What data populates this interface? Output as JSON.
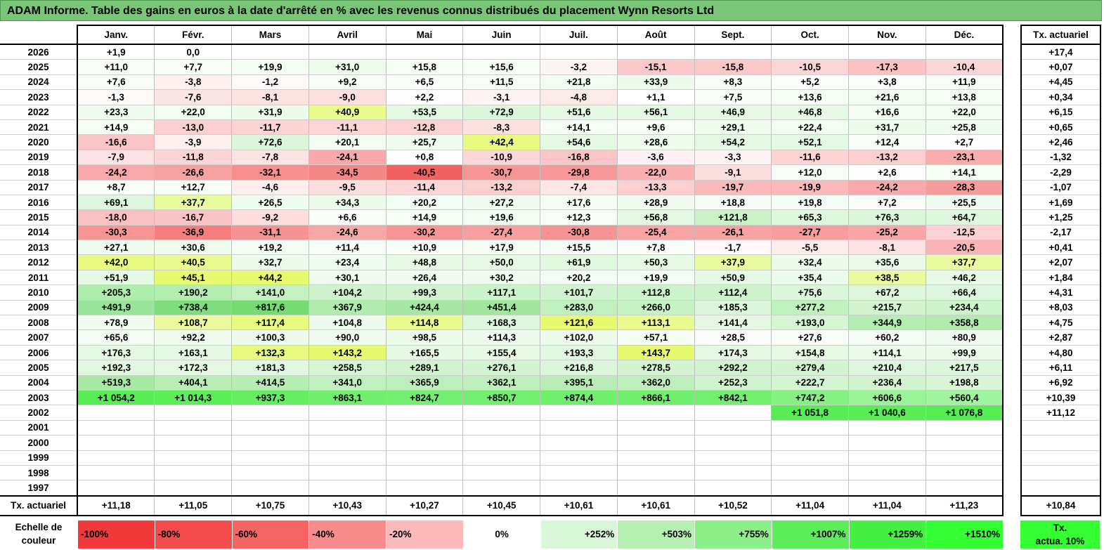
{
  "title": "ADAM Informe. Table des gains en euros à la date d'arrêté en % avec les revenus connus distribués du placement Wynn Resorts Ltd",
  "months": [
    "Janv.",
    "Févr.",
    "Mars",
    "Avril",
    "Mai",
    "Juin",
    "Juil.",
    "Août",
    "Sept.",
    "Oct.",
    "Nov.",
    "Déc."
  ],
  "side_header": "Tx. actuariel",
  "footer_label": "Tx. actuariel",
  "rows": [
    {
      "year": "2026",
      "v": [
        "+1,9",
        "0,0",
        "",
        "",
        "",
        "",
        "",
        "",
        "",
        "",
        "",
        ""
      ],
      "c": [
        "#ffffff",
        "#ffffff",
        "#ffffff",
        "#ffffff",
        "#ffffff",
        "#ffffff",
        "#ffffff",
        "#ffffff",
        "#ffffff",
        "#ffffff",
        "#ffffff",
        "#ffffff"
      ],
      "rate": "+17,4"
    },
    {
      "year": "2025",
      "v": [
        "+11,0",
        "+7,7",
        "+19,9",
        "+31,0",
        "+15,8",
        "+15,6",
        "-3,2",
        "-15,1",
        "-15,8",
        "-10,5",
        "-17,3",
        "-10,4"
      ],
      "c": [
        "#f7fdf6",
        "#f9fdf8",
        "#f4fcf3",
        "#eefbed",
        "#f6fdf5",
        "#f6fdf5",
        "#fff4f4",
        "#fbc9c9",
        "#fbc8c8",
        "#fcd6d6",
        "#fbc2c2",
        "#fcd6d6"
      ],
      "rate": "+0,07"
    },
    {
      "year": "2024",
      "v": [
        "+7,6",
        "-3,8",
        "-1,2",
        "+9,2",
        "+6,5",
        "+11,5",
        "+21,8",
        "+33,9",
        "+8,3",
        "+5,2",
        "+3,8",
        "+11,9"
      ],
      "c": [
        "#f9fdf8",
        "#fff0f0",
        "#fff9f9",
        "#f8fdf7",
        "#fafdf9",
        "#f7fdf6",
        "#f2fcf1",
        "#ecfbeb",
        "#f9fdf8",
        "#fbfefb",
        "#fcfefc",
        "#f7fdf6"
      ],
      "rate": "+4,45"
    },
    {
      "year": "2023",
      "v": [
        "-1,3",
        "-7,6",
        "-8,1",
        "-9,0",
        "+2,2",
        "-3,1",
        "-4,8",
        "+1,1",
        "+7,5",
        "+13,6",
        "+21,6",
        "+13,8"
      ],
      "c": [
        "#fff9f9",
        "#fde4e4",
        "#fde2e2",
        "#fddfdf",
        "#fdfefd",
        "#fff3f3",
        "#fee9e9",
        "#fefffe",
        "#f9fdf8",
        "#f6fdf5",
        "#f2fcf1",
        "#f6fdf5"
      ],
      "rate": "+0,34"
    },
    {
      "year": "2022",
      "v": [
        "+23,3",
        "+22,0",
        "+31,9",
        "+40,9",
        "+53,5",
        "+72,9",
        "+51,6",
        "+56,1",
        "+46,9",
        "+46,8",
        "+16,6",
        "+22,0"
      ],
      "c": [
        "#f1fcf0",
        "#f2fcf1",
        "#edfbec",
        "#e9faе8",
        "#e3f9e2",
        "#dbf7da",
        "#e4f9e3",
        "#e2f8e1",
        "#e6f9e5",
        "#e6f9e5",
        "#f5fcf4",
        "#f2fcf1"
      ],
      "rate": "+6,15"
    },
    {
      "year": "2021",
      "v": [
        "+14,9",
        "-13,0",
        "-11,7",
        "-11,1",
        "-12,8",
        "-8,3",
        "+14,1",
        "+9,6",
        "+29,1",
        "+22,4",
        "+31,7",
        "+25,8"
      ],
      "c": [
        "#f6fdf5",
        "#fcd0d0",
        "#fcd4d4",
        "#fcd5d5",
        "#fcd1d1",
        "#fde1e1",
        "#f6fdf5",
        "#f8fdf7",
        "#eefbed",
        "#f2fcf1",
        "#edfbec",
        "#f0fcef"
      ],
      "rate": "+0,65"
    },
    {
      "year": "2020",
      "v": [
        "-16,6",
        "-3,9",
        "+72,6",
        "+20,1",
        "+25,7",
        "+42,4",
        "+54,6",
        "+28,6",
        "+54,2",
        "+52,1",
        "+12,4",
        "+2,7"
      ],
      "c": [
        "#fbc5c5",
        "#fff0f0",
        "#dbf7da",
        "#f3fcf2",
        "#f0fcef",
        "#e8faе7",
        "#e3f9e2",
        "#eefbed",
        "#e3f9e2",
        "#e4f9e3",
        "#f7fdf6",
        "#fdfefd"
      ],
      "rate": "+2,46"
    },
    {
      "year": "2019",
      "v": [
        "-7,9",
        "-11,8",
        "-7,8",
        "-24,1",
        "+0,8",
        "-10,9",
        "-16,8",
        "-3,6",
        "-3,3",
        "-11,6",
        "-13,2",
        "-23,1"
      ],
      "c": [
        "#fde2e2",
        "#fcd4d4",
        "#fde2e2",
        "#f9a9a9",
        "#ffffff",
        "#fcd7d7",
        "#fbc5c5",
        "#fff1f1",
        "#fff2f2",
        "#fcd4d4",
        "#fccfcf",
        "#f9adad"
      ],
      "rate": "-1,32"
    },
    {
      "year": "2018",
      "v": [
        "-24,2",
        "-26,6",
        "-32,1",
        "-34,5",
        "-40,5",
        "-30,7",
        "-29,8",
        "-22,0",
        "-9,1",
        "+12,0",
        "+2,6",
        "+14,1"
      ],
      "c": [
        "#f9a9a9",
        "#f8a1a1",
        "#f78f8f",
        "#f68787",
        "#f46161",
        "#f79494",
        "#f79797",
        "#fab0b0",
        "#fddede",
        "#f7fdf6",
        "#fdfefd",
        "#f6fdf5"
      ],
      "rate": "-2,29"
    },
    {
      "year": "2017",
      "v": [
        "+8,7",
        "+12,7",
        "-4,6",
        "-9,5",
        "-11,4",
        "-13,2",
        "-7,4",
        "-13,3",
        "-19,7",
        "-19,9",
        "-24,2",
        "-28,3"
      ],
      "c": [
        "#f9fdf8",
        "#f7fdf6",
        "#feeeee",
        "#fddddd",
        "#fcd6d6",
        "#fccfcf",
        "#fde5e5",
        "#fccfcf",
        "#fbbaba",
        "#fbb9b9",
        "#f9a9a9",
        "#f89b9b"
      ],
      "rate": "-1,07"
    },
    {
      "year": "2016",
      "v": [
        "+69,1",
        "+37,7",
        "+26,5",
        "+34,3",
        "+20,2",
        "+27,2",
        "+17,6",
        "+28,9",
        "+18,8",
        "+19,8",
        "+7,2",
        "+25,5"
      ],
      "c": [
        "#dcf7db",
        "#eafaе9",
        "#f0fcef",
        "#ecfbeb",
        "#f3fcf2",
        "#effbee",
        "#f4fcf3",
        "#eefbed",
        "#f4fcf3",
        "#f3fcf2",
        "#f9fdf8",
        "#f0fcef"
      ],
      "rate": "+1,69"
    },
    {
      "year": "2015",
      "v": [
        "-18,0",
        "-16,7",
        "-9,2",
        "+6,6",
        "+14,9",
        "+19,6",
        "+12,3",
        "+56,8",
        "+121,8",
        "+65,3",
        "+76,3",
        "+64,7"
      ],
      "c": [
        "#fbc0c0",
        "#fbc4c4",
        "#fddddd",
        "#fafdf9",
        "#f6fdf5",
        "#f3fcf2",
        "#f7fdf6",
        "#e2f8e1",
        "#c9f3c7",
        "#def8dd",
        "#daf7d9",
        "#def8dd"
      ],
      "rate": "+1,25"
    },
    {
      "year": "2014",
      "v": [
        "-30,3",
        "-36,9",
        "-31,1",
        "-24,6",
        "-30,2",
        "-27,4",
        "-30,8",
        "-25,4",
        "-26,1",
        "-27,7",
        "-25,2",
        "-12,5"
      ],
      "c": [
        "#f79595",
        "#f57e7e",
        "#f79292",
        "#f8a7a7",
        "#f79595",
        "#f89e9e",
        "#f79393",
        "#f8a4a4",
        "#f8a2a2",
        "#f89d9d",
        "#f8a5a5",
        "#fcd2d2"
      ],
      "rate": "-2,17"
    },
    {
      "year": "2013",
      "v": [
        "+27,1",
        "+30,6",
        "+19,2",
        "+11,4",
        "+10,9",
        "+17,9",
        "+15,5",
        "+7,8",
        "-1,7",
        "-5,5",
        "-8,1",
        "-20,5"
      ],
      "c": [
        "#effbee",
        "#eefbed",
        "#f4fcf3",
        "#f7fdf6",
        "#f8fdf7",
        "#f4fcf3",
        "#f5fcf4",
        "#f9fdf8",
        "#fff8f8",
        "#feebeb",
        "#fde2e2",
        "#fab6b6"
      ],
      "rate": "+0,41"
    },
    {
      "year": "2012",
      "v": [
        "+42,0",
        "+40,5",
        "+32,7",
        "+23,4",
        "+48,8",
        "+50,0",
        "+61,9",
        "+50,3",
        "+37,9",
        "+32,4",
        "+35,6",
        "+37,7"
      ],
      "c": [
        "#e8faе7",
        "#e9faе8",
        "#ecfbeb",
        "#f1fcf0",
        "#e5f9e4",
        "#e5f9e4",
        "#dff8de",
        "#e5f9e4",
        "#eafaе9",
        "#ecfbeb",
        "#ebfaea",
        "#eafaе9"
      ],
      "rate": "+2,07"
    },
    {
      "year": "2011",
      "v": [
        "+51,9",
        "+45,1",
        "+44,2",
        "+30,1",
        "+26,4",
        "+30,2",
        "+20,2",
        "+19,9",
        "+50,9",
        "+35,4",
        "+38,5",
        "+46,2"
      ],
      "c": [
        "#e4f9e3",
        "#e7faе6",
        "#e7faе6",
        "#eefbed",
        "#f0fcef",
        "#eefbed",
        "#f3fcf2",
        "#f3fcf2",
        "#e4f9e3",
        "#ebfaea",
        "#eafaе9",
        "#e6f9e5"
      ],
      "rate": "+1,84"
    },
    {
      "year": "2010",
      "v": [
        "+205,3",
        "+190,2",
        "+141,0",
        "+104,2",
        "+99,3",
        "+117,1",
        "+101,7",
        "+112,8",
        "+112,4",
        "+75,6",
        "+67,2",
        "+66,4"
      ],
      "c": [
        "#aeedab",
        "#b3eeb0",
        "#c3f1c1",
        "#cff4cd",
        "#d1f4cf",
        "#cbf3c9",
        "#d0f4ce",
        "#ccf3ca",
        "#ccf3ca",
        "#daf7d9",
        "#ddf7dc",
        "#ddf7dc"
      ],
      "rate": "+4,31"
    },
    {
      "year": "2009",
      "v": [
        "+491,9",
        "+738,4",
        "+817,6",
        "+367,9",
        "+424,4",
        "+451,4",
        "+283,0",
        "+266,0",
        "+185,3",
        "+277,2",
        "+215,7",
        "+234,4"
      ],
      "c": [
        "#9be59a",
        "#80dd7d",
        "#77db74",
        "#b1ecae",
        "#a6e8a3",
        "#a0e79d",
        "#c0f0be",
        "#c5f2c3",
        "#daf7d9",
        "#c1f1bf",
        "#d2f5d0",
        "#cdf4cb"
      ],
      "rate": "+8,03"
    },
    {
      "year": "2008",
      "v": [
        "+78,9",
        "+108,7",
        "+117,4",
        "+104,8",
        "+114,8",
        "+168,3",
        "+121,6",
        "+113,1",
        "+141,4",
        "+193,0",
        "+344,9",
        "+358,8"
      ],
      "c": [
        "#f0fcef",
        "#eafaе9",
        "#e8faе7",
        "#ebfaea",
        "#e9faе8",
        "#dcf7db",
        "#e7faе6",
        "#e9faе8",
        "#e2f8e1",
        "#d5f5d3",
        "#b4edb1",
        "#b1ecae"
      ],
      "rate": "+4,75"
    },
    {
      "year": "2007",
      "v": [
        "+65,6",
        "+92,2",
        "+100,3",
        "+90,0",
        "+98,5",
        "+114,3",
        "+102,0",
        "+57,1",
        "+28,5",
        "+27,6",
        "+60,2",
        "+80,9"
      ],
      "c": [
        "#f3fcf2",
        "#effbee",
        "#edfbec",
        "#effbee",
        "#edfbec",
        "#ebfaea",
        "#ecfbeb",
        "#f5fcf4",
        "#f9fdf8",
        "#f9fdf8",
        "#f4fcf3",
        "#f1fcf0"
      ],
      "rate": "+2,87"
    },
    {
      "year": "2006",
      "v": [
        "+176,3",
        "+163,1",
        "+132,3",
        "+143,2",
        "+165,5",
        "+155,4",
        "+193,3",
        "+143,7",
        "+174,3",
        "+154,8",
        "+114,1",
        "+99,9"
      ],
      "c": [
        "#e2f8e1",
        "#e4f9e3",
        "#e8faе7",
        "#e7faе6",
        "#e4f9e3",
        "#e5f9e4",
        "#e0f8df",
        "#e7faе6",
        "#e2f8e1",
        "#e5f9e4",
        "#ebfaea",
        "#edfbec"
      ],
      "rate": "+4,80"
    },
    {
      "year": "2005",
      "v": [
        "+192,3",
        "+172,3",
        "+181,3",
        "+258,5",
        "+289,1",
        "+276,1",
        "+216,8",
        "+278,5",
        "+292,2",
        "+279,4",
        "+210,4",
        "+217,5"
      ],
      "c": [
        "#e0f8df",
        "#e2f8e1",
        "#e1f8e0",
        "#d5f5d3",
        "#d0f4ce",
        "#d2f5d0",
        "#dbf7da",
        "#d2f5d0",
        "#d0f4ce",
        "#d2f5d0",
        "#dcf7db",
        "#dbf7da"
      ],
      "rate": "+6,11"
    },
    {
      "year": "2004",
      "v": [
        "+519,3",
        "+404,1",
        "+414,5",
        "+341,0",
        "+365,9",
        "+362,1",
        "+395,1",
        "+362,0",
        "+252,3",
        "+222,7",
        "+236,4",
        "+198,8"
      ],
      "c": [
        "#a5e9a2",
        "#b7eeb4",
        "#b5edb2",
        "#c0f0be",
        "#bcefba",
        "#bdefbb",
        "#b8eeb5",
        "#bdefbb",
        "#d0f4ce",
        "#d4f5d2",
        "#d1f4cf",
        "#d8f6d6"
      ],
      "rate": "+6,92"
    },
    {
      "year": "2003",
      "v": [
        "+1 054,2",
        "+1 014,3",
        "+937,3",
        "+863,1",
        "+824,7",
        "+850,7",
        "+874,4",
        "+866,1",
        "+842,1",
        "+747,2",
        "+606,6",
        "+560,4"
      ],
      "c": [
        "#58ed55",
        "#5cee59",
        "#66ee63",
        "#70ef6d",
        "#75ef72",
        "#72ef6f",
        "#6fef6c",
        "#70ef6d",
        "#73ef70",
        "#86f183",
        "#99f397",
        "#a0f49e"
      ],
      "rate": "+10,39"
    },
    {
      "year": "2002",
      "v": [
        "",
        "",
        "",
        "",
        "",
        "",
        "",
        "",
        "",
        "+1 051,8",
        "+1 040,6",
        "+1 076,8"
      ],
      "c": [
        "#ffffff",
        "#ffffff",
        "#ffffff",
        "#ffffff",
        "#ffffff",
        "#ffffff",
        "#ffffff",
        "#ffffff",
        "#ffffff",
        "#58ed55",
        "#59ed56",
        "#55ed52"
      ],
      "rate": "+11,12"
    },
    {
      "year": "2001",
      "v": [
        "",
        "",
        "",
        "",
        "",
        "",
        "",
        "",
        "",
        "",
        "",
        ""
      ],
      "c": [
        "#ffffff",
        "#ffffff",
        "#ffffff",
        "#ffffff",
        "#ffffff",
        "#ffffff",
        "#ffffff",
        "#ffffff",
        "#ffffff",
        "#ffffff",
        "#ffffff",
        "#ffffff"
      ],
      "rate": ""
    },
    {
      "year": "2000",
      "v": [
        "",
        "",
        "",
        "",
        "",
        "",
        "",
        "",
        "",
        "",
        "",
        ""
      ],
      "c": [
        "#ffffff",
        "#ffffff",
        "#ffffff",
        "#ffffff",
        "#ffffff",
        "#ffffff",
        "#ffffff",
        "#ffffff",
        "#ffffff",
        "#ffffff",
        "#ffffff",
        "#ffffff"
      ],
      "rate": ""
    },
    {
      "year": "1999",
      "v": [
        "",
        "",
        "",
        "",
        "",
        "",
        "",
        "",
        "",
        "",
        "",
        ""
      ],
      "c": [
        "#ffffff",
        "#ffffff",
        "#ffffff",
        "#ffffff",
        "#ffffff",
        "#ffffff",
        "#ffffff",
        "#ffffff",
        "#ffffff",
        "#ffffff",
        "#ffffff",
        "#ffffff"
      ],
      "rate": ""
    },
    {
      "year": "1998",
      "v": [
        "",
        "",
        "",
        "",
        "",
        "",
        "",
        "",
        "",
        "",
        "",
        ""
      ],
      "c": [
        "#ffffff",
        "#ffffff",
        "#ffffff",
        "#ffffff",
        "#ffffff",
        "#ffffff",
        "#ffffff",
        "#ffffff",
        "#ffffff",
        "#ffffff",
        "#ffffff",
        "#ffffff"
      ],
      "rate": ""
    },
    {
      "year": "1997",
      "v": [
        "",
        "",
        "",
        "",
        "",
        "",
        "",
        "",
        "",
        "",
        "",
        ""
      ],
      "c": [
        "#ffffff",
        "#ffffff",
        "#ffffff",
        "#ffffff",
        "#ffffff",
        "#ffffff",
        "#ffffff",
        "#ffffff",
        "#ffffff",
        "#ffffff",
        "#ffffff",
        "#ffffff"
      ],
      "rate": ""
    }
  ],
  "footer_values": [
    "+11,18",
    "+11,05",
    "+10,75",
    "+10,43",
    "+10,27",
    "+10,45",
    "+10,61",
    "+10,61",
    "+10,52",
    "+11,04",
    "+11,04",
    "+11,23"
  ],
  "footer_total": "+10,84",
  "scale": {
    "label_line1": "Echelle de",
    "label_line2": "couleur",
    "items": [
      {
        "label": "-100%",
        "color": "#f23a3a",
        "kind": "neg"
      },
      {
        "label": "-80%",
        "color": "#f44c4c",
        "kind": "neg"
      },
      {
        "label": "-60%",
        "color": "#f66464",
        "kind": "neg"
      },
      {
        "label": "-40%",
        "color": "#f88c8c",
        "kind": "neg"
      },
      {
        "label": "-20%",
        "color": "#fbb9b9",
        "kind": "neg"
      },
      {
        "label": "0%",
        "color": "#ffffff",
        "kind": "zero"
      },
      {
        "label": "+252%",
        "color": "#d8f7d6",
        "kind": "pos"
      },
      {
        "label": "+503%",
        "color": "#b5f0b2",
        "kind": "pos"
      },
      {
        "label": "+755%",
        "color": "#8cf089",
        "kind": "pos"
      },
      {
        "label": "+1007%",
        "color": "#5cee59",
        "kind": "pos"
      },
      {
        "label": "+1259%",
        "color": "#44f041",
        "kind": "pos"
      },
      {
        "label": "+1510%",
        "color": "#33ff33",
        "kind": "pos"
      }
    ],
    "target_line1": "Tx.",
    "target_line2": "actua. 10%",
    "target_color": "#33ff33"
  }
}
